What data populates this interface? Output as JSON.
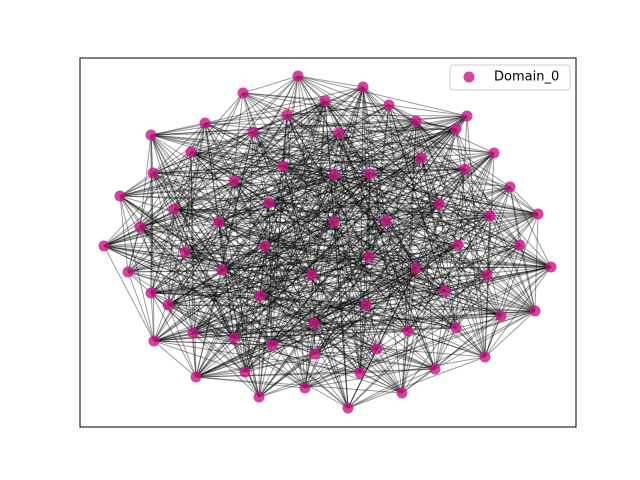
{
  "legend": {
    "label": "Domain_0",
    "color": "#c71585"
  }
}
